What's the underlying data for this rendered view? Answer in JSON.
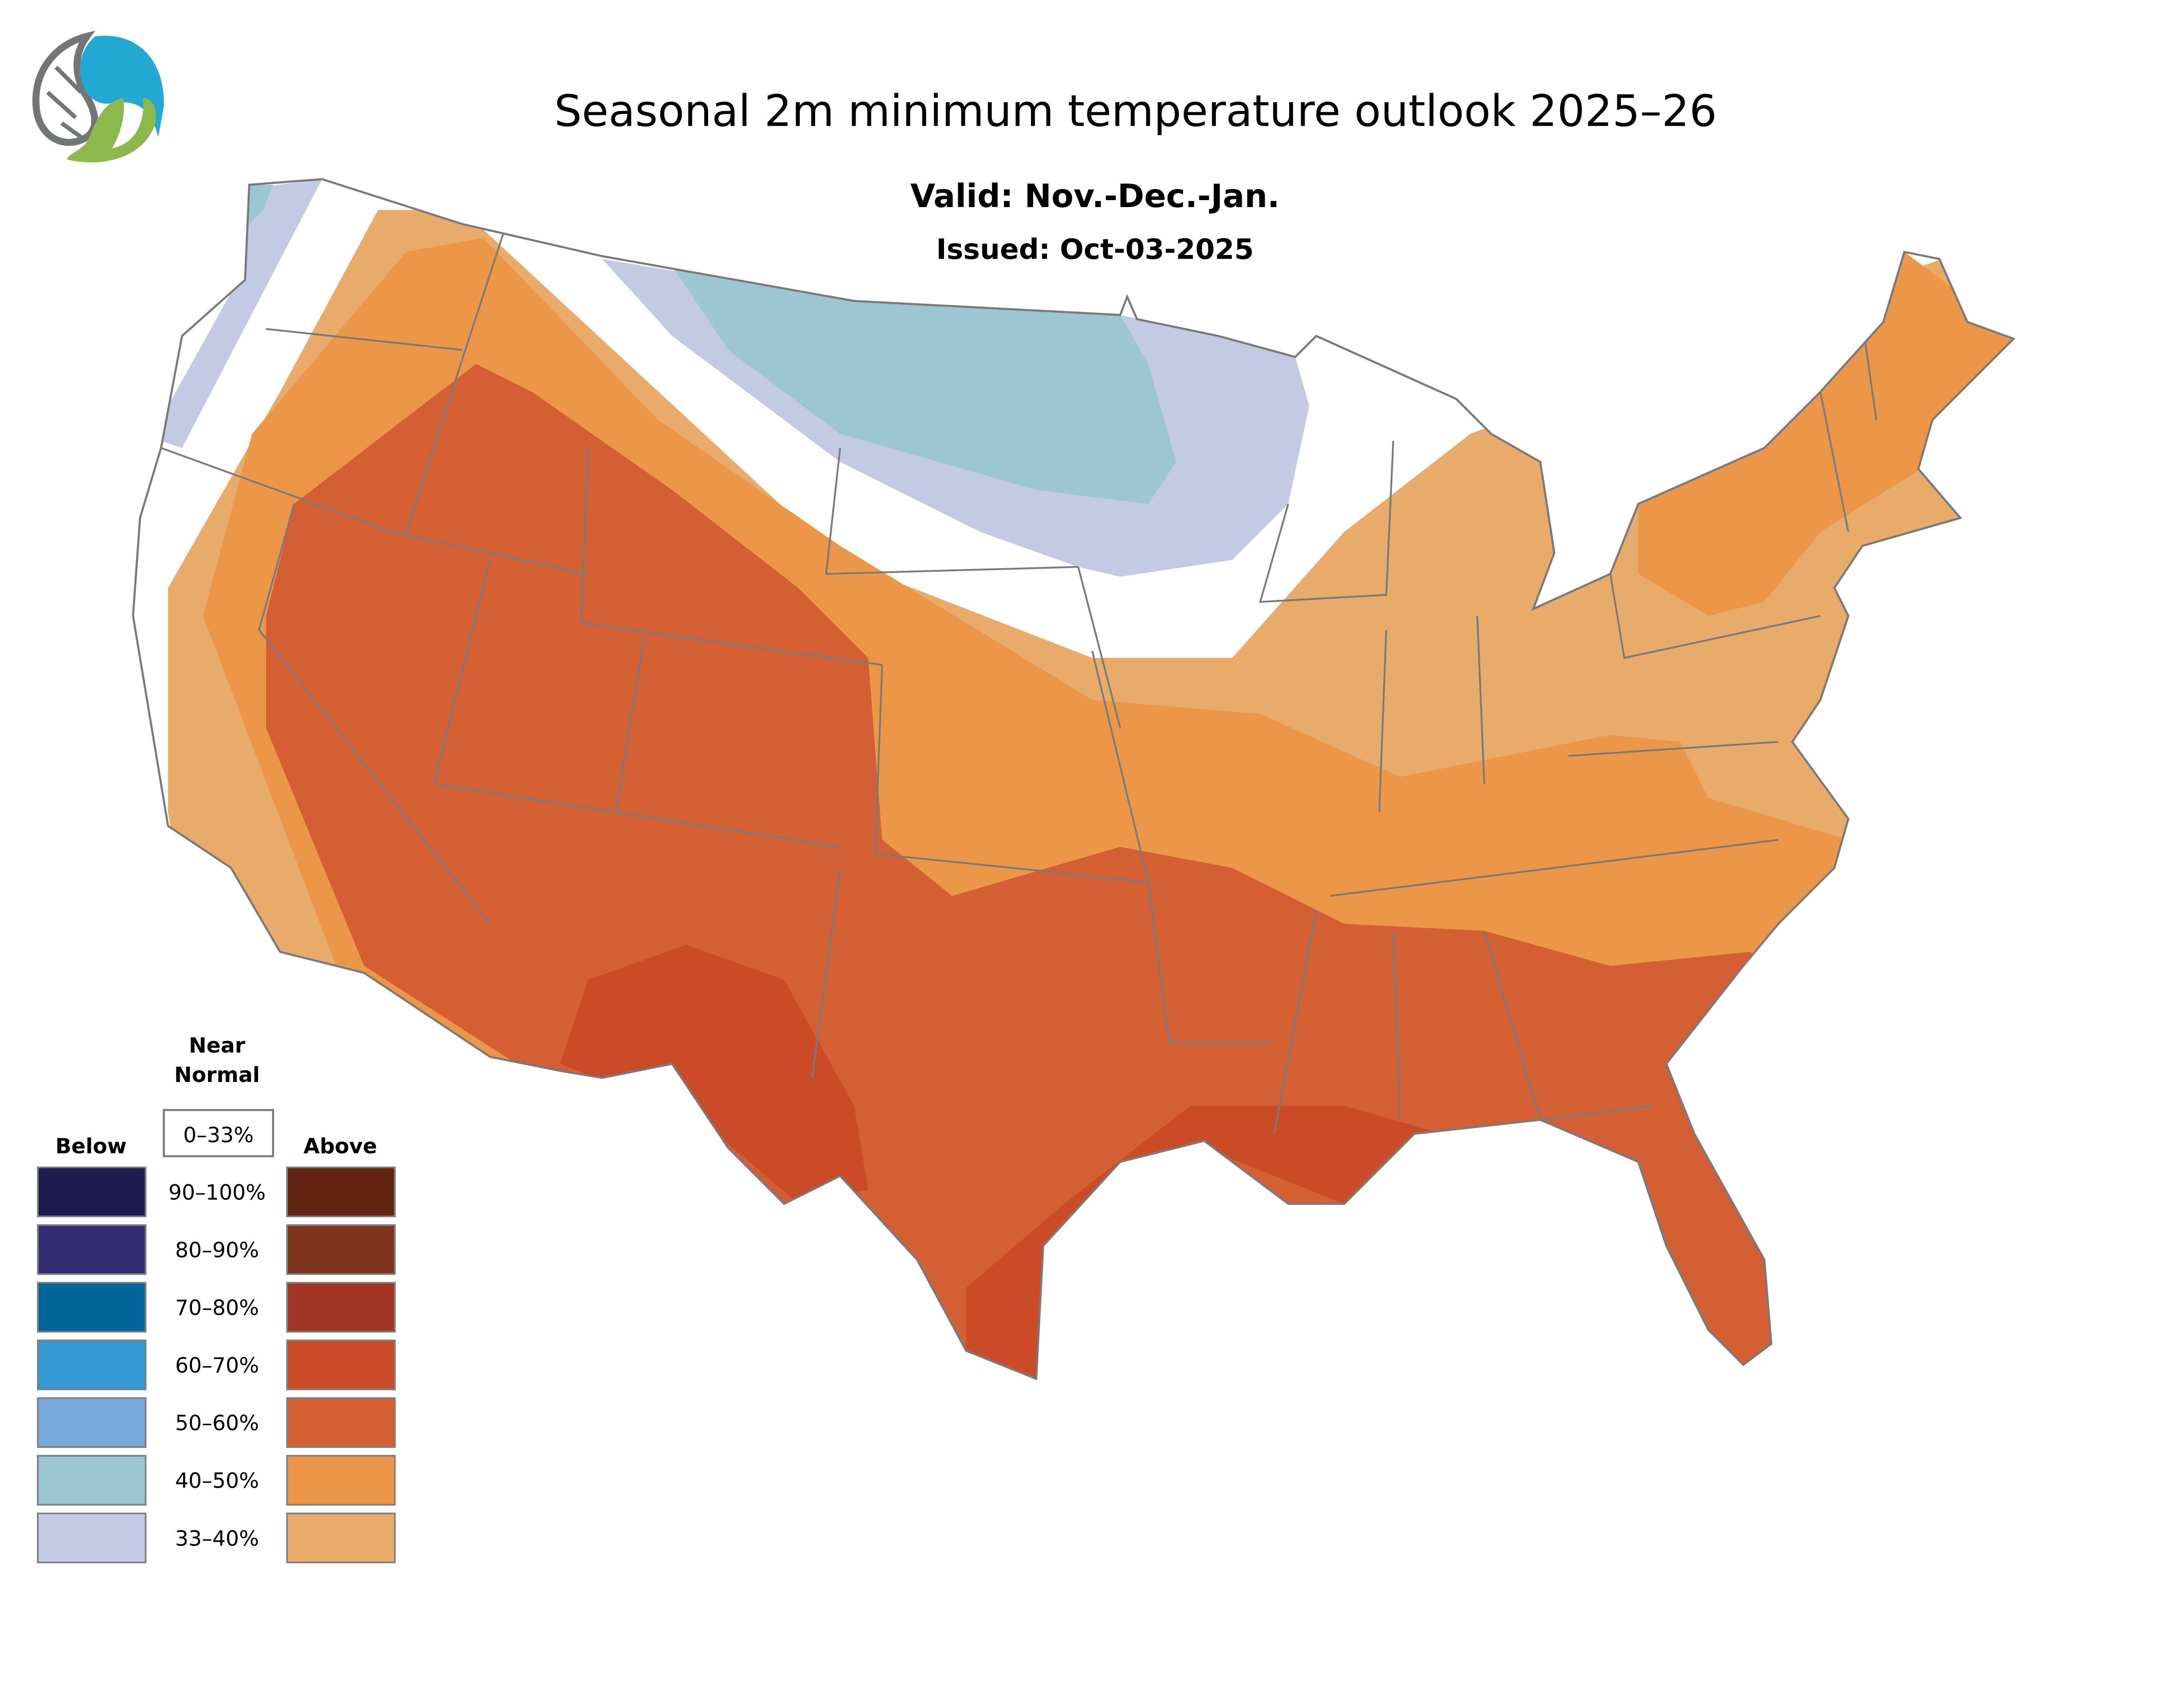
{
  "title": "Seasonal 2m minimum temperature outlook 2025–26",
  "valid": "Valid: Nov.-Dec.-Jan.",
  "issued": "Issued: Oct-03-2025",
  "legend": {
    "near_normal_title_line1": "Near",
    "near_normal_title_line2": "Normal",
    "near_normal_range": "0–33%",
    "below_label": "Below",
    "above_label": "Above",
    "ranges": [
      "90–100%",
      "80–90%",
      "70–80%",
      "60–70%",
      "50–60%",
      "40–50%",
      "33–40%"
    ],
    "below_colors": [
      "#1f1a4f",
      "#342d73",
      "#00669b",
      "#3399d5",
      "#77aadb",
      "#9cc6d2",
      "#c3cae3"
    ],
    "above_colors": [
      "#632311",
      "#7f341d",
      "#a53525",
      "#cc4b27",
      "#d35f32",
      "#ec9747",
      "#e8ab69"
    ]
  },
  "map_colors": {
    "near_normal": "#ffffff",
    "border": "#7a7a7a"
  },
  "logo_colors": {
    "circuit": "#737677",
    "water": "#21a9d4",
    "leaf": "#8db84c"
  }
}
